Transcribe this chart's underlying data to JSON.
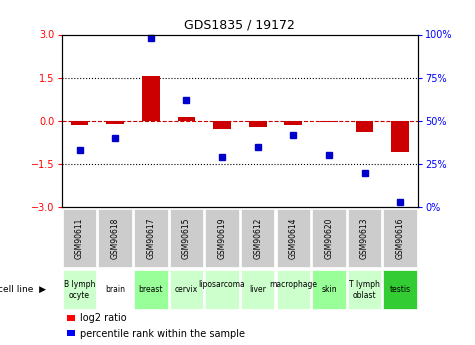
{
  "title": "GDS1835 / 19172",
  "gsm_labels": [
    "GSM90611",
    "GSM90618",
    "GSM90617",
    "GSM90615",
    "GSM90619",
    "GSM90612",
    "GSM90614",
    "GSM90620",
    "GSM90613",
    "GSM90616"
  ],
  "cell_labels": [
    "B lymph\nocyte",
    "brain",
    "breast",
    "cervix",
    "liposarcoma\n",
    "liver",
    "macrophage\n",
    "skin",
    "T lymph\noblast",
    "testis"
  ],
  "cell_bg_colors": [
    "#ccffcc",
    "#ffffff",
    "#99ff99",
    "#ccffcc",
    "#ccffcc",
    "#ccffcc",
    "#ccffcc",
    "#99ff99",
    "#ccffcc",
    "#33cc33"
  ],
  "log2_ratios": [
    -0.15,
    -0.1,
    1.55,
    0.12,
    -0.3,
    -0.2,
    -0.15,
    -0.05,
    -0.4,
    -1.1
  ],
  "percentile_ranks": [
    33,
    40,
    98,
    62,
    29,
    35,
    42,
    30,
    20,
    3
  ],
  "ylim": [
    -3,
    3
  ],
  "yticks_left": [
    -3,
    -1.5,
    0,
    1.5,
    3
  ],
  "yticks_right": [
    0,
    25,
    50,
    75,
    100
  ],
  "bar_color": "#cc0000",
  "dot_color": "#0000cc",
  "zero_line_color": "#cc0000",
  "grid_color": "#000000",
  "gsm_bg": "#cccccc",
  "bar_width": 0.5
}
